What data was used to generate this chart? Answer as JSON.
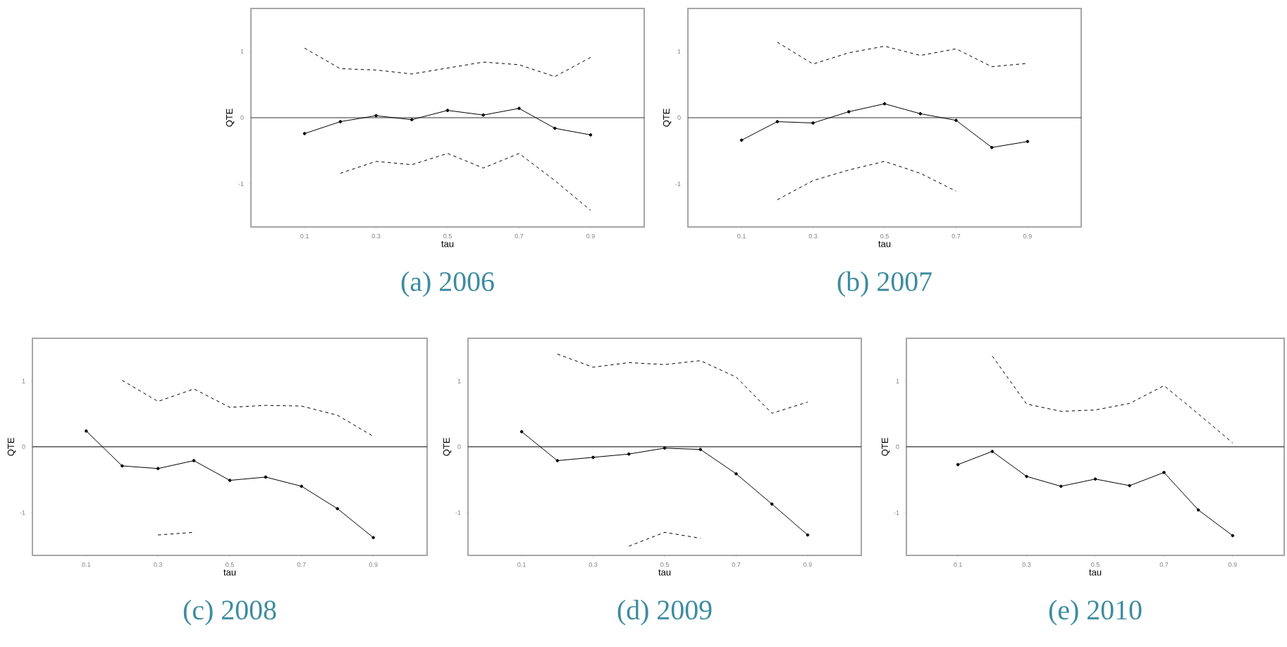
{
  "chart_data": [
    {
      "type": "line",
      "title": "(a) 2006",
      "xlabel": "tau",
      "ylabel": "QTE",
      "x": [
        0.1,
        0.2,
        0.3,
        0.4,
        0.5,
        0.6,
        0.7,
        0.8,
        0.9
      ],
      "xlim": [
        -0.05,
        1.05
      ],
      "ylim": [
        -1.65,
        1.65
      ],
      "xticks": [
        0.1,
        0.3,
        0.5,
        0.7,
        0.9
      ],
      "yticks": [
        -1,
        0,
        1
      ],
      "ref_lines": [
        {
          "axis": "y",
          "value": 0
        }
      ],
      "series": [
        {
          "color": "#000000",
          "marker": "circle",
          "line_style": "solid",
          "values": [
            -0.24,
            -0.06,
            0.03,
            -0.03,
            0.11,
            0.04,
            0.14,
            -0.16,
            -0.26
          ]
        },
        {
          "color": "#000000",
          "line_style": "dashed",
          "values": [
            1.05,
            0.74,
            0.72,
            0.66,
            0.75,
            0.84,
            0.8,
            0.62,
            0.91
          ]
        },
        {
          "color": "#000000",
          "line_style": "dashed",
          "values": [
            null,
            -0.84,
            -0.66,
            -0.71,
            -0.54,
            -0.76,
            -0.54,
            -0.95,
            -1.4
          ]
        }
      ]
    },
    {
      "type": "line",
      "title": "(b) 2007",
      "xlabel": "tau",
      "ylabel": "QTE",
      "x": [
        0.1,
        0.2,
        0.3,
        0.4,
        0.5,
        0.6,
        0.7,
        0.8,
        0.9
      ],
      "xlim": [
        -0.05,
        1.05
      ],
      "ylim": [
        -1.65,
        1.65
      ],
      "xticks": [
        0.1,
        0.3,
        0.5,
        0.7,
        0.9
      ],
      "yticks": [
        -1,
        0,
        1
      ],
      "ref_lines": [
        {
          "axis": "y",
          "value": 0
        }
      ],
      "series": [
        {
          "color": "#000000",
          "marker": "circle",
          "line_style": "solid",
          "values": [
            -0.34,
            -0.06,
            -0.08,
            0.09,
            0.21,
            0.06,
            -0.04,
            -0.45,
            -0.36
          ]
        },
        {
          "color": "#000000",
          "line_style": "dashed",
          "values": [
            null,
            1.14,
            0.81,
            0.98,
            1.08,
            0.94,
            1.04,
            0.77,
            0.82
          ]
        },
        {
          "color": "#000000",
          "line_style": "dashed",
          "values": [
            null,
            -1.24,
            -0.95,
            -0.79,
            -0.66,
            -0.84,
            -1.11,
            null,
            null
          ]
        }
      ]
    },
    {
      "type": "line",
      "title": "(c) 2008",
      "xlabel": "tau",
      "ylabel": "QTE",
      "x": [
        0.1,
        0.2,
        0.3,
        0.4,
        0.5,
        0.6,
        0.7,
        0.8,
        0.9
      ],
      "xlim": [
        -0.05,
        1.05
      ],
      "ylim": [
        -1.65,
        1.65
      ],
      "xticks": [
        0.1,
        0.3,
        0.5,
        0.7,
        0.9
      ],
      "yticks": [
        -1,
        0,
        1
      ],
      "ref_lines": [
        {
          "axis": "y",
          "value": 0
        }
      ],
      "series": [
        {
          "color": "#000000",
          "marker": "circle",
          "line_style": "solid",
          "values": [
            0.24,
            -0.29,
            -0.33,
            -0.21,
            -0.51,
            -0.46,
            -0.6,
            -0.94,
            -1.38
          ]
        },
        {
          "color": "#000000",
          "line_style": "dashed",
          "values": [
            null,
            1.01,
            0.69,
            0.88,
            0.6,
            0.63,
            0.62,
            0.48,
            0.16
          ]
        },
        {
          "color": "#000000",
          "line_style": "dashed",
          "values": [
            null,
            null,
            -1.34,
            -1.3,
            null,
            null,
            null,
            null,
            null
          ]
        }
      ]
    },
    {
      "type": "line",
      "title": "(d) 2009",
      "xlabel": "tau",
      "ylabel": "QTE",
      "x": [
        0.1,
        0.2,
        0.3,
        0.4,
        0.5,
        0.6,
        0.7,
        0.8,
        0.9
      ],
      "xlim": [
        -0.05,
        1.05
      ],
      "ylim": [
        -1.65,
        1.65
      ],
      "xticks": [
        0.1,
        0.3,
        0.5,
        0.7,
        0.9
      ],
      "yticks": [
        -1,
        0,
        1
      ],
      "ref_lines": [
        {
          "axis": "y",
          "value": 0
        }
      ],
      "series": [
        {
          "color": "#000000",
          "marker": "circle",
          "line_style": "solid",
          "values": [
            0.23,
            -0.21,
            -0.16,
            -0.11,
            -0.02,
            -0.04,
            -0.41,
            -0.87,
            -1.34
          ]
        },
        {
          "color": "#000000",
          "line_style": "dashed",
          "values": [
            null,
            1.41,
            1.21,
            1.28,
            1.25,
            1.31,
            1.06,
            0.51,
            0.68
          ]
        },
        {
          "color": "#000000",
          "line_style": "dashed",
          "values": [
            null,
            null,
            null,
            -1.51,
            -1.3,
            -1.39,
            null,
            null,
            null
          ]
        }
      ]
    },
    {
      "type": "line",
      "title": "(e) 2010",
      "xlabel": "tau",
      "ylabel": "QTE",
      "x": [
        0.1,
        0.2,
        0.3,
        0.4,
        0.5,
        0.6,
        0.7,
        0.8,
        0.9
      ],
      "xlim": [
        -0.05,
        1.05
      ],
      "ylim": [
        -1.65,
        1.65
      ],
      "xticks": [
        0.1,
        0.3,
        0.5,
        0.7,
        0.9
      ],
      "yticks": [
        -1,
        0,
        1
      ],
      "ref_lines": [
        {
          "axis": "y",
          "value": 0
        }
      ],
      "series": [
        {
          "color": "#000000",
          "marker": "circle",
          "line_style": "solid",
          "values": [
            -0.27,
            -0.07,
            -0.45,
            -0.6,
            -0.49,
            -0.59,
            -0.39,
            -0.96,
            -1.35
          ]
        },
        {
          "color": "#000000",
          "line_style": "dashed",
          "values": [
            null,
            1.38,
            0.65,
            0.54,
            0.56,
            0.66,
            0.93,
            0.5,
            0.06
          ]
        }
      ]
    }
  ]
}
